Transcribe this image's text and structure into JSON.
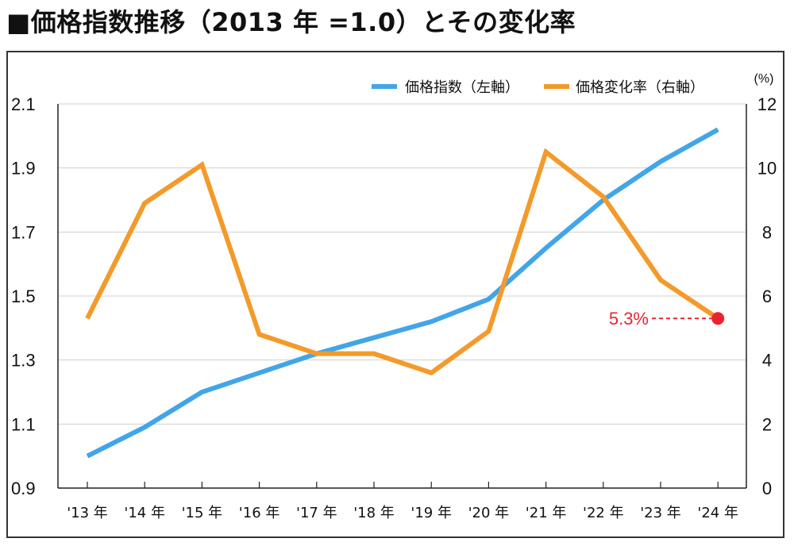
{
  "title": "■価格指数推移（2013 年 =1.0）とその変化率",
  "chart_data": {
    "type": "line",
    "categories": [
      "'13 年",
      "'14 年",
      "'15 年",
      "'16 年",
      "'17 年",
      "'18 年",
      "'19 年",
      "'20 年",
      "'21 年",
      "'22 年",
      "'23 年",
      "'24 年"
    ],
    "series": [
      {
        "name": "価格指数（左軸）",
        "axis": "left",
        "color": "#42a5e8",
        "values": [
          1.0,
          1.09,
          1.2,
          1.26,
          1.32,
          1.37,
          1.42,
          1.49,
          1.65,
          1.8,
          1.92,
          2.02
        ]
      },
      {
        "name": "価格変化率（右軸）",
        "axis": "right",
        "color": "#f39a2b",
        "values": [
          5.3,
          8.9,
          10.1,
          4.8,
          4.2,
          4.2,
          3.6,
          4.9,
          10.5,
          9.1,
          6.5,
          5.3
        ]
      }
    ],
    "left_axis": {
      "range": [
        0.9,
        2.1
      ],
      "ticks": [
        "0.9",
        "1.1",
        "1.3",
        "1.5",
        "1.7",
        "1.9",
        "2.1"
      ]
    },
    "right_axis": {
      "range": [
        0,
        12
      ],
      "ticks": [
        "0",
        "2",
        "4",
        "6",
        "8",
        "10",
        "12"
      ],
      "unit": "(%)"
    },
    "annotation": {
      "text": "5.3%",
      "series": 1,
      "index": 11,
      "color": "#e8242f"
    },
    "grid": true,
    "legend": "top-right"
  }
}
